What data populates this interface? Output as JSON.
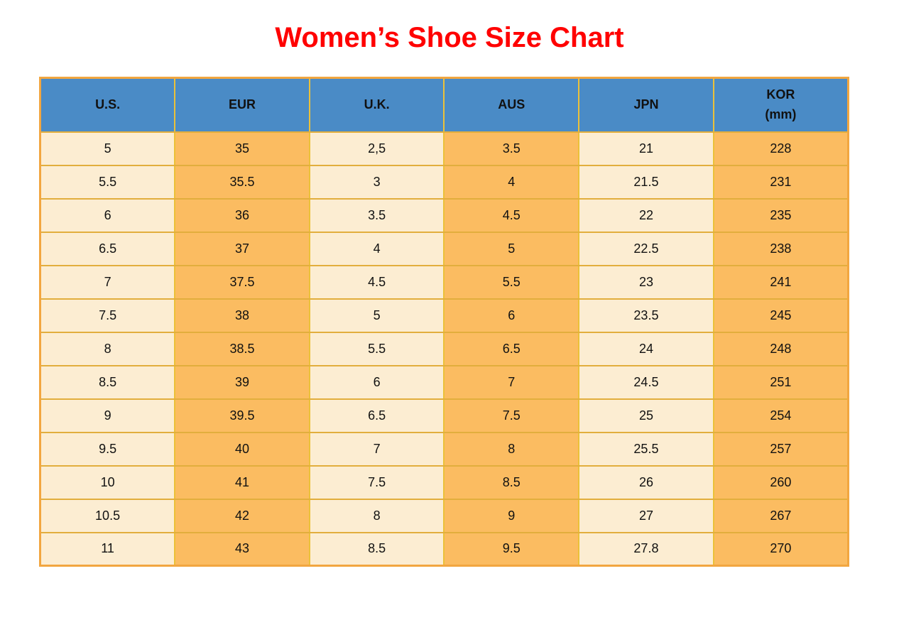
{
  "title": "Women’s Shoe Size Chart",
  "colors": {
    "header_bg": "#4a8bc6",
    "column_light": "#fcedd2",
    "column_orange": "#fbbc61",
    "border_horizontal": "#e2ae3d",
    "border_vertical": "#ebc139",
    "border_outer": "#f2a640",
    "title_red": "#ff0000",
    "text": "#111111"
  },
  "header_lines": [
    [
      "U.S."
    ],
    [
      "EUR"
    ],
    [
      "U.K."
    ],
    [
      "AUS"
    ],
    [
      "JPN"
    ],
    [
      "KOR",
      "(mm)"
    ]
  ],
  "chart_data": {
    "type": "table",
    "title": "Women’s Shoe Size Chart",
    "columns": [
      "U.S.",
      "EUR",
      "U.K.",
      "AUS",
      "JPN",
      "KOR (mm)"
    ],
    "rows": [
      [
        "5",
        "35",
        "2,5",
        "3.5",
        "21",
        "228"
      ],
      [
        "5.5",
        "35.5",
        "3",
        "4",
        "21.5",
        "231"
      ],
      [
        "6",
        "36",
        "3.5",
        "4.5",
        "22",
        "235"
      ],
      [
        "6.5",
        "37",
        "4",
        "5",
        "22.5",
        "238"
      ],
      [
        "7",
        "37.5",
        "4.5",
        "5.5",
        "23",
        "241"
      ],
      [
        "7.5",
        "38",
        "5",
        "6",
        "23.5",
        "245"
      ],
      [
        "8",
        "38.5",
        "5.5",
        "6.5",
        "24",
        "248"
      ],
      [
        "8.5",
        "39",
        "6",
        "7",
        "24.5",
        "251"
      ],
      [
        "9",
        "39.5",
        "6.5",
        "7.5",
        "25",
        "254"
      ],
      [
        "9.5",
        "40",
        "7",
        "8",
        "25.5",
        "257"
      ],
      [
        "10",
        "41",
        "7.5",
        "8.5",
        "26",
        "260"
      ],
      [
        "10.5",
        "42",
        "8",
        "9",
        "27",
        "267"
      ],
      [
        "11",
        "43",
        "8.5",
        "9.5",
        "27.8",
        "270"
      ]
    ]
  }
}
